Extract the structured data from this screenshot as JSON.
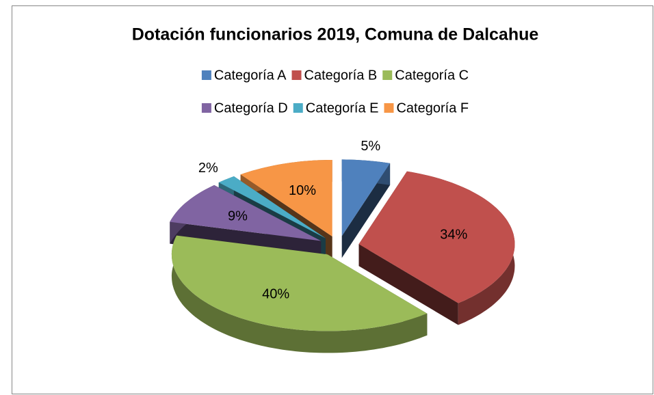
{
  "chart_data": {
    "type": "pie3d",
    "title": "Dotación funcionarios 2019, Comuna de Dalcahue",
    "categories": [
      "Categoría A",
      "Categoría B",
      "Categoría C",
      "Categoría D",
      "Categoría E",
      "Categoría F"
    ],
    "values": [
      5,
      34,
      40,
      9,
      2,
      10
    ],
    "value_labels": [
      "5%",
      "34%",
      "40%",
      "9%",
      "2%",
      "10%"
    ],
    "colors": [
      "#4f81bd",
      "#c0504d",
      "#9bbb59",
      "#8064a2",
      "#4bacc6",
      "#f79646"
    ],
    "legend": "top"
  }
}
